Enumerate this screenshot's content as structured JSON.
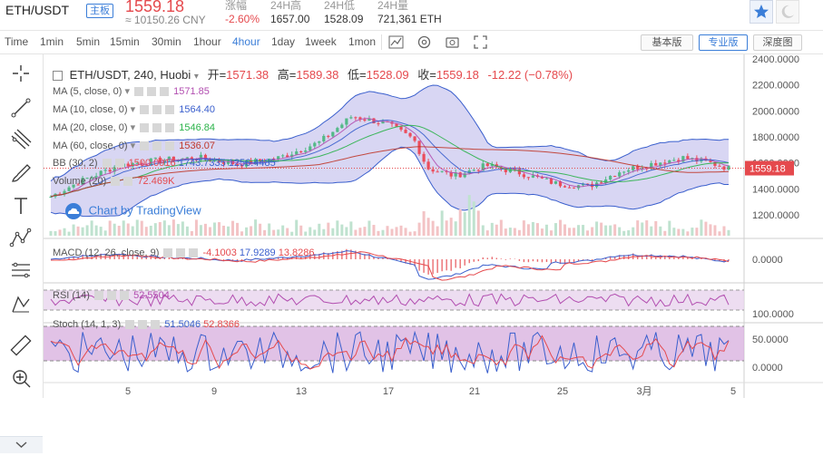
{
  "header": {
    "pair": "ETH/USDT",
    "tag": "主板",
    "price": "1559.18",
    "cny": "≈ 10150.26 CNY",
    "stats": [
      {
        "label": "涨幅",
        "value": "-2.60%",
        "color": "#e5494d"
      },
      {
        "label": "24H高",
        "value": "1657.00",
        "color": "#333333"
      },
      {
        "label": "24H低",
        "value": "1528.09",
        "color": "#333333"
      },
      {
        "label": "24H量",
        "value": "721,361 ETH",
        "color": "#333333"
      }
    ]
  },
  "toolbar": {
    "intervals": [
      "Time",
      "1min",
      "5min",
      "15min",
      "30min",
      "1hour",
      "4hour",
      "1day",
      "1week",
      "1mon"
    ],
    "active_interval": "4hour",
    "icons": [
      "indicator-icon",
      "settings-icon",
      "screenshot-icon",
      "fullscreen-icon"
    ],
    "views": [
      "基本版",
      "专业版",
      "深度图"
    ],
    "active_view": "专业版"
  },
  "left_tools": [
    "crosshair-icon",
    "trend-line-icon",
    "pitchfork-icon",
    "brush-icon",
    "text-icon",
    "pattern-icon",
    "fibonacci-icon",
    "projection-icon",
    "ruler-icon",
    "zoom-in-icon"
  ],
  "chart": {
    "title": "ETH/USDT, 240, Huobi",
    "ohlc": [
      {
        "label": "开=",
        "value": "1571.38"
      },
      {
        "label": "高=",
        "value": "1589.38"
      },
      {
        "label": "低=",
        "value": "1528.09"
      },
      {
        "label": "收=",
        "value": "1559.18"
      }
    ],
    "change": "-12.22 (−0.78%)",
    "legends": [
      {
        "name": "MA (5, close, 0)",
        "value": "1571.85",
        "color": "#b24eb0"
      },
      {
        "name": "MA (10, close, 0)",
        "value": "1564.40",
        "color": "#3a5fcd"
      },
      {
        "name": "MA (20, close, 0)",
        "value": "1546.84",
        "color": "#2bb34a"
      },
      {
        "name": "MA (60, close, 0)",
        "value": "1536.07",
        "color": "#c0392b"
      }
    ],
    "bb": {
      "name": "BB (30, 2)",
      "values": [
        "1500.0916",
        "1743.7335",
        "1256.4485"
      ],
      "colors": [
        "#e5494d",
        "#3a5fcd",
        "#3a5fcd"
      ]
    },
    "volume": {
      "name": "Volume (20)",
      "value": "72.469K",
      "color": "#e5494d"
    },
    "watermark": "Chart by TradingView",
    "price_axis": [
      "2400.0000",
      "2200.0000",
      "2000.0000",
      "1800.0000",
      "1600.0000",
      "1400.0000",
      "1200.0000"
    ],
    "last_price": "1559.18",
    "macd": {
      "name": "MACD (12, 26, close, 9)",
      "values": [
        "-4.1003",
        "17.9289",
        "13.8286"
      ],
      "axis": "0.0000"
    },
    "rsi": {
      "name": "RSI (14)",
      "value": "52.5504"
    },
    "stoch": {
      "name": "Stoch (14, 1, 3)",
      "values": [
        "51.5046",
        "52.8366"
      ],
      "axis": [
        "100.0000",
        "50.0000",
        "0.0000"
      ]
    },
    "time_axis": [
      "5",
      "9",
      "13",
      "17",
      "21",
      "25",
      "3月",
      "5"
    ],
    "colors": {
      "up": "#53b987",
      "down": "#eb4d5c",
      "band": "#c8c5ee",
      "rsi_band": "#e9d5ee",
      "stoch_band": "#d7aedd"
    }
  }
}
